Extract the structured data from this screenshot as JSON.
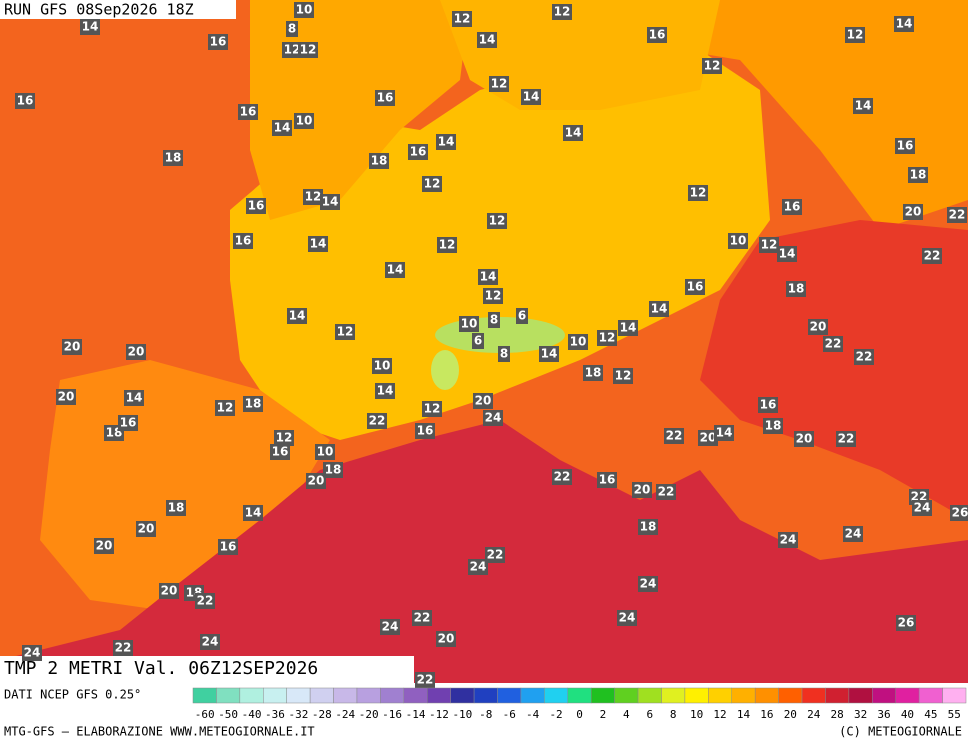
{
  "header": {
    "run": "RUN GFS 08Sep2026 18Z",
    "title": "TMP 2 METRI Val. 06Z12SEP2026",
    "source": "DATI NCEP GFS 0.25°",
    "credit": "MTG-GFS — ELABORAZIONE WWW.METEOGIORNALE.IT",
    "copyright": "(C) METEOGIORNALE"
  },
  "map_labels": [
    14,
    16,
    10,
    8,
    12,
    12,
    12,
    12,
    16,
    12,
    14,
    16,
    14,
    12,
    16,
    14,
    10,
    16,
    12,
    14,
    14,
    14,
    18,
    18,
    16,
    14,
    16,
    12,
    12,
    14,
    16,
    12,
    18,
    20,
    22,
    16,
    12,
    16,
    14,
    12,
    10,
    12,
    14,
    22,
    14,
    14,
    12,
    16,
    18,
    14,
    12,
    10,
    8,
    6,
    14,
    14,
    12,
    20,
    22,
    6,
    8,
    10,
    14,
    22,
    20,
    20,
    10,
    18,
    12,
    20,
    14,
    12,
    18,
    14,
    12,
    20,
    16,
    18,
    16,
    22,
    24,
    16,
    12,
    16,
    10,
    18,
    22,
    20,
    14,
    20,
    22,
    18,
    20,
    22,
    16,
    20,
    22,
    18,
    14,
    22,
    24,
    26,
    20,
    18,
    24,
    24,
    20,
    16,
    22,
    24,
    24,
    20,
    18,
    22,
    24,
    22,
    24,
    26,
    20,
    24,
    22,
    24,
    22
  ],
  "colorbar": {
    "ticks": [
      -60,
      -50,
      -40,
      -36,
      -32,
      -28,
      -24,
      -20,
      -16,
      -14,
      -12,
      -10,
      -8,
      -6,
      -4,
      -2,
      0,
      2,
      4,
      6,
      8,
      10,
      12,
      14,
      16,
      20,
      24,
      28,
      32,
      36,
      40,
      45,
      55
    ],
    "colors": [
      "#40d0a0",
      "#80e0c0",
      "#b0f0e0",
      "#c8f0f0",
      "#d8e8f8",
      "#d0d0f0",
      "#c8b8e8",
      "#b8a0e0",
      "#a080d0",
      "#9060c0",
      "#7040b0",
      "#3030a0",
      "#2040c0",
      "#2060e0",
      "#20a0f0",
      "#20d0f0",
      "#20e080",
      "#20c020",
      "#60d020",
      "#a0e020",
      "#e0f020",
      "#fff000",
      "#ffd000",
      "#ffb000",
      "#ff9000",
      "#ff6000",
      "#f03020",
      "#d02030",
      "#b01040",
      "#c01080",
      "#e020a0",
      "#f060d0",
      "#ffb0f0"
    ]
  }
}
